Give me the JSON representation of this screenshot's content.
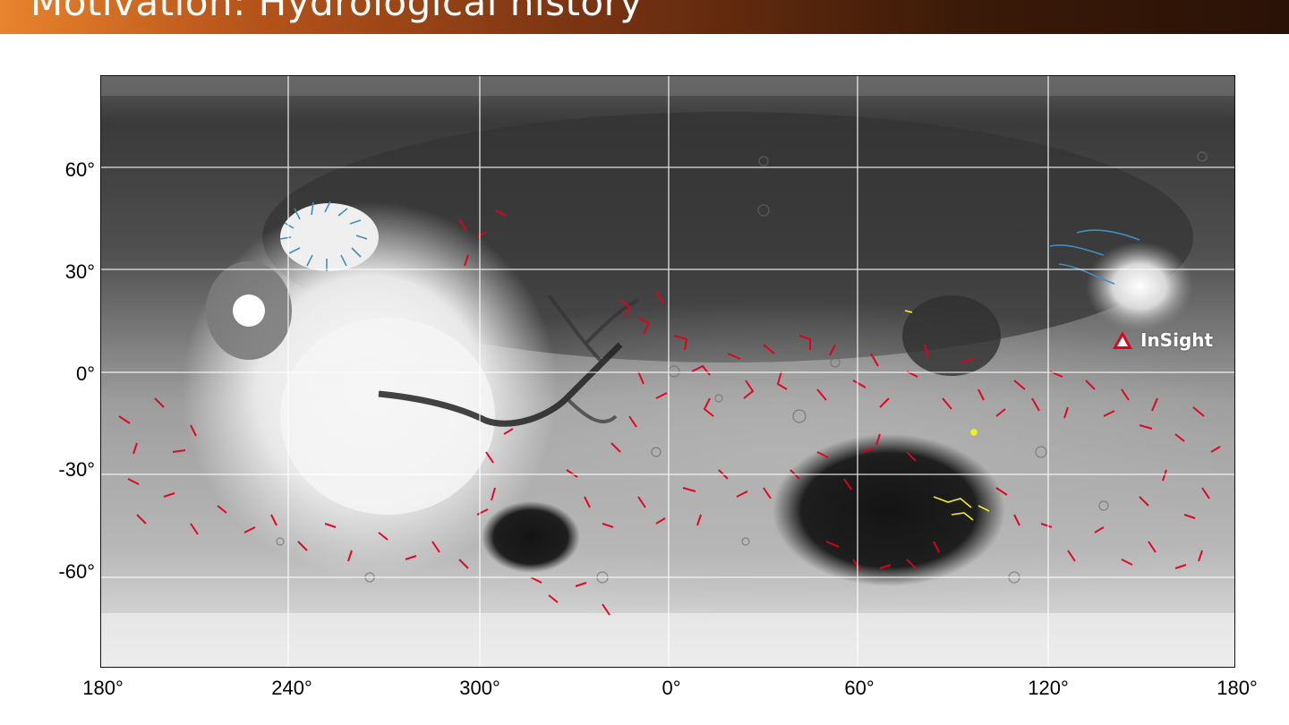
{
  "title": "Motivation: Hydrological history",
  "map": {
    "latitude_labels": [
      "60°",
      "30°",
      "0°",
      "-30°",
      "-60°"
    ],
    "latitude_values": [
      60,
      30,
      0,
      -30,
      -60
    ],
    "longitude_labels": [
      "180°",
      "240°",
      "300°",
      "0°",
      "60°",
      "120°",
      "180°"
    ],
    "longitude_values": [
      180,
      240,
      300,
      0,
      60,
      120,
      180
    ],
    "marker": {
      "label": "InSight",
      "icon": "triangle-marker-icon",
      "color": "#e3001b"
    },
    "colors": {
      "valley_networks": "#e3001b",
      "outflow_channels": "#3f8fc0",
      "yellow_features": "#f0f020"
    }
  }
}
